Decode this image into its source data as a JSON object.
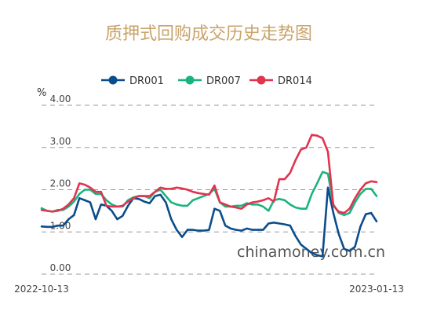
{
  "chart_data": {
    "type": "line",
    "title": "质押式回购成交历史走势图",
    "ylabel": "%",
    "ylim": [
      0,
      4
    ],
    "yticks": [
      "0.00",
      "1.00",
      "2.00",
      "3.00",
      "4.00"
    ],
    "x_start_label": "2022-10-13",
    "x_end_label": "2023-01-13",
    "x_range": [
      "2022-10-13",
      "2023-01-13"
    ],
    "grid": true,
    "legend_position": "top",
    "watermark": "chinamoney.com.cn",
    "series": [
      {
        "name": "DR001",
        "color": "#0b4c8c",
        "values": [
          1.13,
          1.12,
          1.12,
          1.15,
          1.15,
          1.3,
          1.4,
          1.8,
          1.75,
          1.7,
          1.3,
          1.65,
          1.62,
          1.5,
          1.3,
          1.38,
          1.62,
          1.8,
          1.78,
          1.72,
          1.68,
          1.85,
          1.88,
          1.7,
          1.3,
          1.05,
          0.88,
          1.05,
          1.05,
          1.03,
          1.03,
          1.05,
          1.55,
          1.5,
          1.15,
          1.08,
          1.05,
          1.03,
          1.08,
          1.05,
          1.05,
          1.05,
          1.2,
          1.22,
          1.2,
          1.18,
          1.15,
          0.9,
          0.7,
          0.6,
          0.5,
          0.45,
          0.42,
          2.05,
          1.45,
          0.95,
          0.6,
          0.55,
          0.65,
          1.12,
          1.42,
          1.45,
          1.25
        ]
      },
      {
        "name": "DR007",
        "color": "#19b47c",
        "values": [
          1.56,
          1.5,
          1.48,
          1.52,
          1.52,
          1.6,
          1.72,
          1.9,
          2.0,
          2.0,
          1.9,
          1.9,
          1.75,
          1.65,
          1.6,
          1.6,
          1.75,
          1.82,
          1.85,
          1.85,
          1.8,
          1.95,
          2.0,
          1.85,
          1.7,
          1.65,
          1.62,
          1.62,
          1.75,
          1.8,
          1.85,
          1.9,
          2.02,
          1.7,
          1.6,
          1.6,
          1.62,
          1.62,
          1.68,
          1.65,
          1.65,
          1.6,
          1.5,
          1.75,
          1.78,
          1.75,
          1.65,
          1.58,
          1.55,
          1.55,
          1.9,
          2.15,
          2.42,
          2.38,
          1.65,
          1.45,
          1.4,
          1.45,
          1.7,
          1.9,
          2.02,
          2.02,
          1.85
        ]
      },
      {
        "name": "DR014",
        "color": "#e0344f",
        "values": [
          1.52,
          1.5,
          1.48,
          1.5,
          1.55,
          1.65,
          1.8,
          2.15,
          2.12,
          2.05,
          1.95,
          1.95,
          1.62,
          1.6,
          1.6,
          1.62,
          1.72,
          1.8,
          1.85,
          1.85,
          1.85,
          1.95,
          2.05,
          2.02,
          2.02,
          2.05,
          2.03,
          2.0,
          1.95,
          1.92,
          1.9,
          1.88,
          2.1,
          1.7,
          1.65,
          1.6,
          1.58,
          1.55,
          1.65,
          1.7,
          1.72,
          1.75,
          1.8,
          1.72,
          2.25,
          2.25,
          2.4,
          2.7,
          2.95,
          3.0,
          3.3,
          3.28,
          3.22,
          2.9,
          1.62,
          1.48,
          1.45,
          1.55,
          1.8,
          2.0,
          2.15,
          2.2,
          2.18
        ]
      }
    ]
  }
}
